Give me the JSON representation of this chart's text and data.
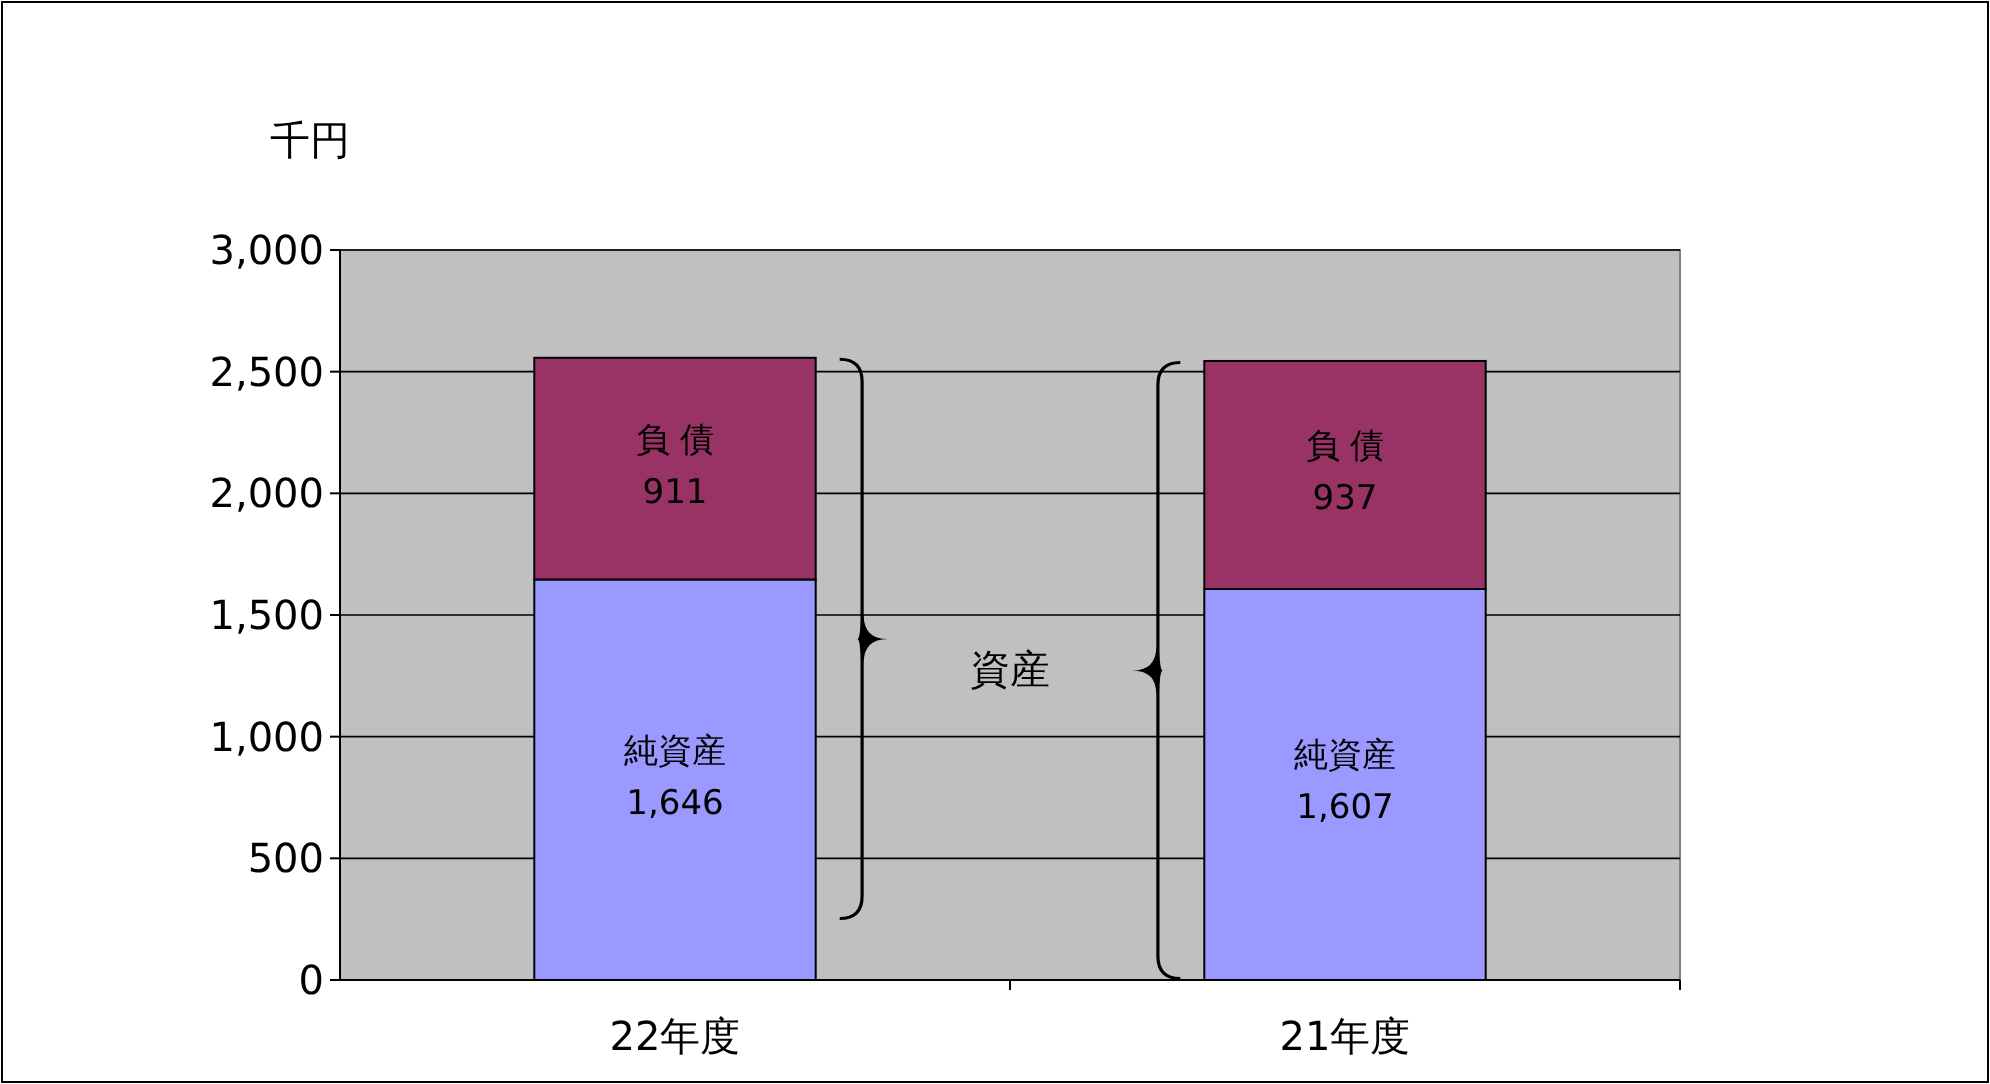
{
  "chart_data": {
    "type": "bar",
    "stacked": true,
    "ylabel": "千円",
    "categories": [
      "22年度",
      "21年度"
    ],
    "series": [
      {
        "name": "純資産",
        "color": "#9999ff",
        "values": [
          1646,
          1607
        ],
        "value_labels": [
          "1,646",
          "1,607"
        ]
      },
      {
        "name": "負 債",
        "color": "#993366",
        "values": [
          911,
          937
        ],
        "value_labels": [
          "911",
          "937"
        ]
      }
    ],
    "ylim": [
      0,
      3000
    ],
    "yticks": [
      0,
      {
        "value": 500,
        "label": "500"
      },
      {
        "value": 1000,
        "label": "1,000"
      },
      {
        "value": 1500,
        "label": "1,500"
      },
      {
        "value": 2000,
        "label": "2,000"
      },
      {
        "value": 2500,
        "label": "2,500"
      },
      {
        "value": 3000,
        "label": "3,000"
      }
    ],
    "grid": "y",
    "annotations": [
      "資産"
    ]
  }
}
